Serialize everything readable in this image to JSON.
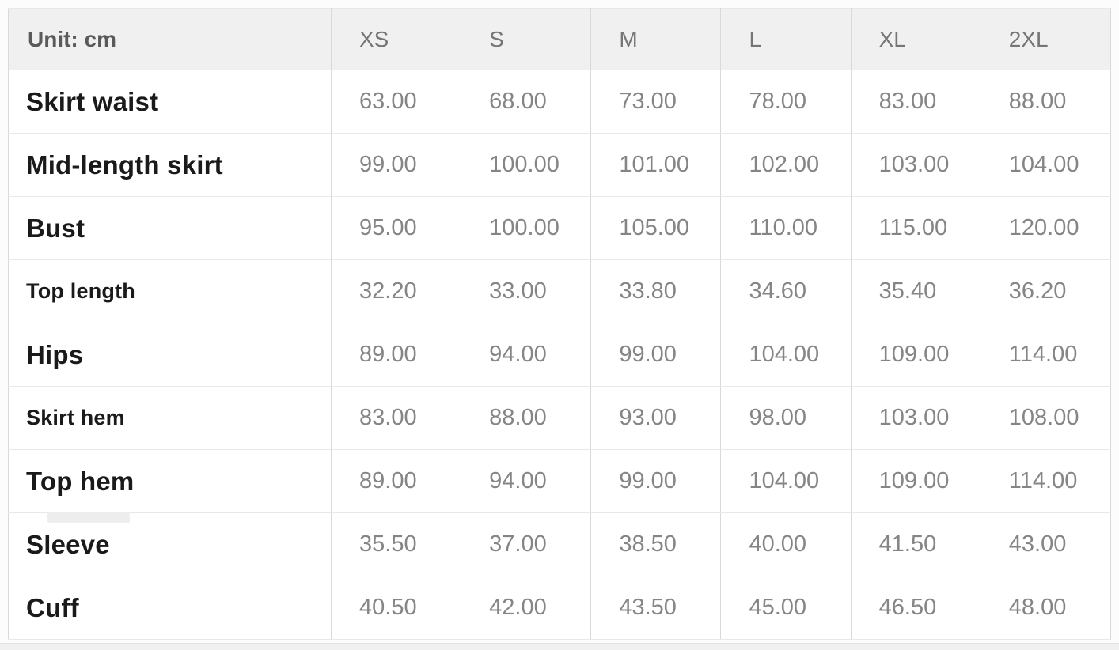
{
  "table": {
    "unit_label": "Unit: cm",
    "size_headers": [
      "XS",
      "S",
      "M",
      "L",
      "XL",
      "2XL"
    ],
    "rows": [
      {
        "label": "Skirt waist",
        "label_size": "large",
        "values": [
          "63.00",
          "68.00",
          "73.00",
          "78.00",
          "83.00",
          "88.00"
        ]
      },
      {
        "label": "Mid-length skirt",
        "label_size": "large",
        "values": [
          "99.00",
          "100.00",
          "101.00",
          "102.00",
          "103.00",
          "104.00"
        ]
      },
      {
        "label": "Bust",
        "label_size": "large",
        "values": [
          "95.00",
          "100.00",
          "105.00",
          "110.00",
          "115.00",
          "120.00"
        ]
      },
      {
        "label": "Top length",
        "label_size": "small",
        "values": [
          "32.20",
          "33.00",
          "33.80",
          "34.60",
          "35.40",
          "36.20"
        ]
      },
      {
        "label": "Hips",
        "label_size": "large",
        "values": [
          "89.00",
          "94.00",
          "99.00",
          "104.00",
          "109.00",
          "114.00"
        ]
      },
      {
        "label": "Skirt hem",
        "label_size": "small",
        "values": [
          "83.00",
          "88.00",
          "93.00",
          "98.00",
          "103.00",
          "108.00"
        ]
      },
      {
        "label": "Top hem",
        "label_size": "large",
        "values": [
          "89.00",
          "94.00",
          "99.00",
          "104.00",
          "109.00",
          "114.00"
        ]
      },
      {
        "label": "Sleeve",
        "label_size": "large",
        "values": [
          "35.50",
          "37.00",
          "38.50",
          "40.00",
          "41.50",
          "43.00"
        ]
      },
      {
        "label": "Cuff",
        "label_size": "large",
        "values": [
          "40.50",
          "42.00",
          "43.50",
          "45.00",
          "46.50",
          "48.00"
        ]
      }
    ],
    "colors": {
      "header_background": "#f0f0f0",
      "header_text": "#5a5a5a",
      "size_header_text": "#757575",
      "row_label_text": "#1a1a1a",
      "value_text": "#858585",
      "border_vertical": "#d9d9d9",
      "border_horizontal": "#e8e8e8",
      "outer_border": "#d0d0d0",
      "row_background": "#ffffff"
    }
  },
  "chart_data": {
    "type": "table",
    "title": "Garment size chart (Unit: cm)",
    "columns": [
      "Unit: cm",
      "XS",
      "S",
      "M",
      "L",
      "XL",
      "2XL"
    ],
    "rows": [
      [
        "Skirt waist",
        63.0,
        68.0,
        73.0,
        78.0,
        83.0,
        88.0
      ],
      [
        "Mid-length skirt",
        99.0,
        100.0,
        101.0,
        102.0,
        103.0,
        104.0
      ],
      [
        "Bust",
        95.0,
        100.0,
        105.0,
        110.0,
        115.0,
        120.0
      ],
      [
        "Top length",
        32.2,
        33.0,
        33.8,
        34.6,
        35.4,
        36.2
      ],
      [
        "Hips",
        89.0,
        94.0,
        99.0,
        104.0,
        109.0,
        114.0
      ],
      [
        "Skirt hem",
        83.0,
        88.0,
        93.0,
        98.0,
        103.0,
        108.0
      ],
      [
        "Top hem",
        89.0,
        94.0,
        99.0,
        104.0,
        109.0,
        114.0
      ],
      [
        "Sleeve",
        35.5,
        37.0,
        38.5,
        40.0,
        41.5,
        43.0
      ],
      [
        "Cuff",
        40.5,
        42.0,
        43.5,
        45.0,
        46.5,
        48.0
      ]
    ],
    "layout": {
      "header_row": true,
      "grid": true,
      "value_format": "2-decimal",
      "unit": "cm"
    }
  }
}
